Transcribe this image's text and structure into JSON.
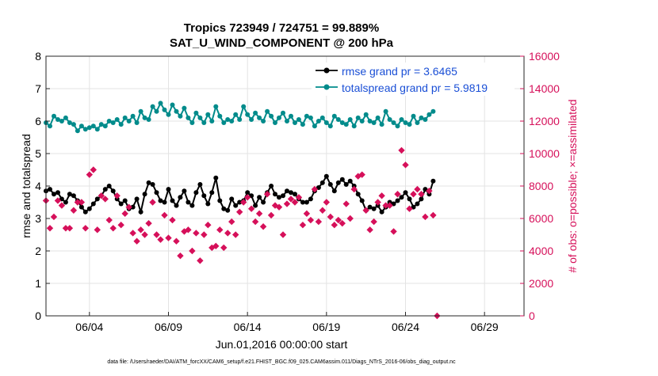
{
  "chart_data": {
    "type": "line",
    "title": "Tropics 723949 / 724751 = 99.889%",
    "subtitle": "SAT_U_WIND_COMPONENT @ 200 hPa",
    "xlabel": "Jun.01,2016 00:00:00 start",
    "ylabel_left": "rmse and totalspread",
    "ylabel_right": "# of obs: o=possible; ×=assimilated",
    "footer": "data file: /Users/raeder/DAI/ATM_forcXX/CAM6_setup/f.e21.FHIST_BGC.f09_025.CAM6assim.011/Diags_NTrS_2016-06/obs_diag_output.nc",
    "x_range_days": [
      0.25,
      30.5
    ],
    "ylim_left": [
      0,
      8
    ],
    "ylim_right": [
      0,
      16000
    ],
    "y_ticks_left": [
      "0",
      "1",
      "2",
      "3",
      "4",
      "5",
      "6",
      "7",
      "8"
    ],
    "y_ticks_right": [
      "0",
      "2000",
      "4000",
      "6000",
      "8000",
      "10000",
      "12000",
      "14000",
      "16000"
    ],
    "x_ticks": [
      {
        "day": 3.0,
        "label": "06/04"
      },
      {
        "day": 8.0,
        "label": "06/09"
      },
      {
        "day": 13.0,
        "label": "06/14"
      },
      {
        "day": 18.0,
        "label": "06/19"
      },
      {
        "day": 23.0,
        "label": "06/24"
      },
      {
        "day": 28.0,
        "label": "06/29"
      }
    ],
    "time_step_days": 0.25,
    "series": [
      {
        "name": "rmse",
        "legend": "rmse grand pr = 3.6465",
        "color": "#000000",
        "axis": "left",
        "values": [
          3.85,
          3.9,
          3.75,
          3.8,
          3.6,
          3.5,
          3.75,
          3.7,
          3.55,
          3.35,
          3.2,
          3.3,
          3.45,
          3.6,
          3.7,
          3.9,
          4.0,
          3.85,
          3.6,
          3.45,
          3.55,
          3.3,
          3.35,
          3.6,
          3.2,
          3.75,
          4.1,
          4.05,
          3.8,
          3.55,
          3.5,
          3.9,
          3.55,
          3.4,
          3.65,
          3.85,
          3.5,
          3.4,
          3.8,
          4.05,
          3.7,
          3.45,
          3.8,
          4.25,
          3.55,
          3.3,
          3.25,
          3.6,
          3.4,
          3.5,
          3.55,
          3.8,
          3.7,
          3.4,
          3.65,
          3.5,
          3.8,
          4.0,
          3.75,
          3.65,
          3.7,
          3.85,
          3.8,
          3.75,
          3.6,
          3.5,
          3.5,
          3.6,
          3.85,
          3.95,
          4.1,
          4.3,
          4.05,
          3.85,
          4.1,
          4.2,
          4.05,
          4.15,
          4.0,
          3.75,
          3.55,
          3.25,
          3.35,
          3.3,
          3.4,
          3.2,
          3.35,
          3.5,
          3.45,
          3.55,
          3.65,
          3.8,
          3.6,
          3.35,
          3.45,
          3.6,
          3.9,
          3.75,
          4.15
        ]
      },
      {
        "name": "totalspread",
        "legend": "totalspread grand pr = 5.9819",
        "color": "#008b8b",
        "axis": "left",
        "values": [
          5.95,
          5.85,
          6.15,
          6.05,
          6.0,
          6.1,
          5.95,
          5.9,
          5.7,
          5.85,
          5.75,
          5.8,
          5.85,
          5.75,
          5.9,
          5.85,
          6.0,
          5.95,
          6.05,
          5.9,
          6.1,
          6.0,
          6.15,
          5.95,
          6.3,
          6.1,
          6.05,
          6.45,
          6.3,
          6.55,
          6.35,
          6.2,
          6.5,
          6.3,
          6.15,
          6.4,
          6.1,
          5.95,
          6.25,
          6.1,
          5.95,
          6.2,
          6.0,
          6.45,
          6.15,
          5.95,
          6.05,
          6.0,
          6.2,
          6.05,
          6.45,
          6.2,
          6.05,
          6.25,
          6.1,
          6.0,
          6.3,
          6.15,
          5.95,
          6.1,
          6.25,
          6.0,
          6.15,
          5.95,
          6.05,
          5.9,
          6.15,
          6.1,
          5.85,
          6.0,
          6.1,
          5.95,
          5.85,
          6.15,
          6.05,
          5.95,
          5.9,
          6.05,
          5.85,
          6.1,
          6.0,
          6.2,
          6.0,
          5.95,
          6.1,
          5.9,
          6.3,
          6.05,
          5.95,
          5.85,
          6.05,
          5.95,
          5.9,
          6.15,
          5.95,
          6.1,
          6.05,
          6.2,
          6.3
        ]
      },
      {
        "name": "obs_assimilated",
        "color": "#d6105a",
        "axis": "right",
        "marker": "x",
        "values": [
          7100,
          5400,
          6100,
          7100,
          6800,
          5400,
          5400,
          6500,
          7000,
          7000,
          5400,
          8700,
          9000,
          5300,
          7400,
          7200,
          5900,
          5400,
          7400,
          5600,
          6300,
          6700,
          5100,
          4600,
          5300,
          5000,
          5700,
          7000,
          5000,
          4700,
          6200,
          4800,
          5900,
          4600,
          3700,
          5200,
          5300,
          4000,
          5100,
          3400,
          5000,
          5600,
          4200,
          4300,
          5300,
          4200,
          5100,
          5800,
          5000,
          6400,
          7000,
          7300,
          6600,
          5800,
          6300,
          5500,
          7500,
          6200,
          6800,
          6700,
          5000,
          6900,
          7200,
          7000,
          7300,
          5600,
          6300,
          5900,
          7800,
          5800,
          6500,
          7000,
          6100,
          5600,
          5900,
          5700,
          6900,
          6000,
          7800,
          8600,
          8700,
          6500,
          5300,
          5800,
          7000,
          7400,
          6800,
          6800,
          5200,
          7500,
          10200,
          9300,
          6600,
          7500,
          7800,
          7500,
          6100,
          7700,
          6200,
          0
        ]
      }
    ]
  }
}
